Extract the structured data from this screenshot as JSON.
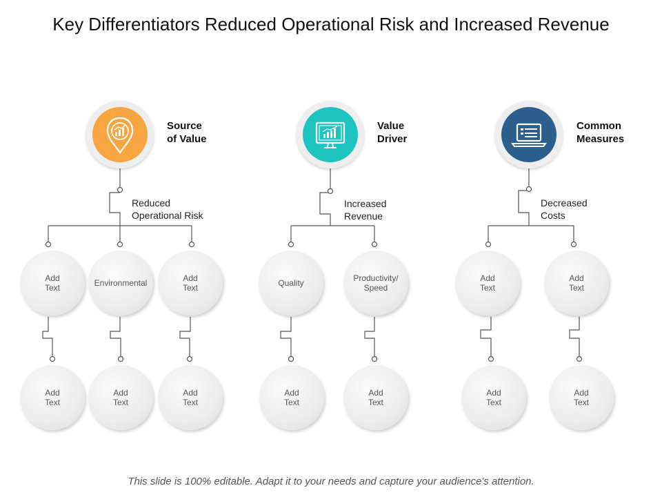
{
  "title": "Key Differentiators Reduced Operational Risk and Increased Revenue",
  "footer": "This slide is 100% editable. Adapt it to your needs and capture your audience's attention.",
  "colors": {
    "orange": "#F7A540",
    "teal": "#1EC4C0",
    "blue": "#2C5F8E",
    "line": "#555555",
    "node": "#EDEDED"
  },
  "columns": [
    {
      "icon": "location-pin-chart-icon",
      "heading": "Source\nof Value",
      "subheading": "Reduced\nOperational Risk",
      "top_nodes": [
        "Add\nText",
        "Environmental",
        "Add\nText"
      ],
      "bottom_nodes": [
        "Add\nText",
        "Add\nText",
        "Add\nText"
      ]
    },
    {
      "icon": "monitor-chart-icon",
      "heading": "Value\nDriver",
      "subheading": "Increased\nRevenue",
      "top_nodes": [
        "Quality",
        "Productivity/\nSpeed"
      ],
      "bottom_nodes": [
        "Add\nText",
        "Add\nText"
      ]
    },
    {
      "icon": "laptop-icon",
      "heading": "Common\nMeasures",
      "subheading": "Decreased\nCosts",
      "top_nodes": [
        "Add\nText",
        "Add\nText"
      ],
      "bottom_nodes": [
        "Add\nText",
        "Add\nText"
      ]
    }
  ]
}
